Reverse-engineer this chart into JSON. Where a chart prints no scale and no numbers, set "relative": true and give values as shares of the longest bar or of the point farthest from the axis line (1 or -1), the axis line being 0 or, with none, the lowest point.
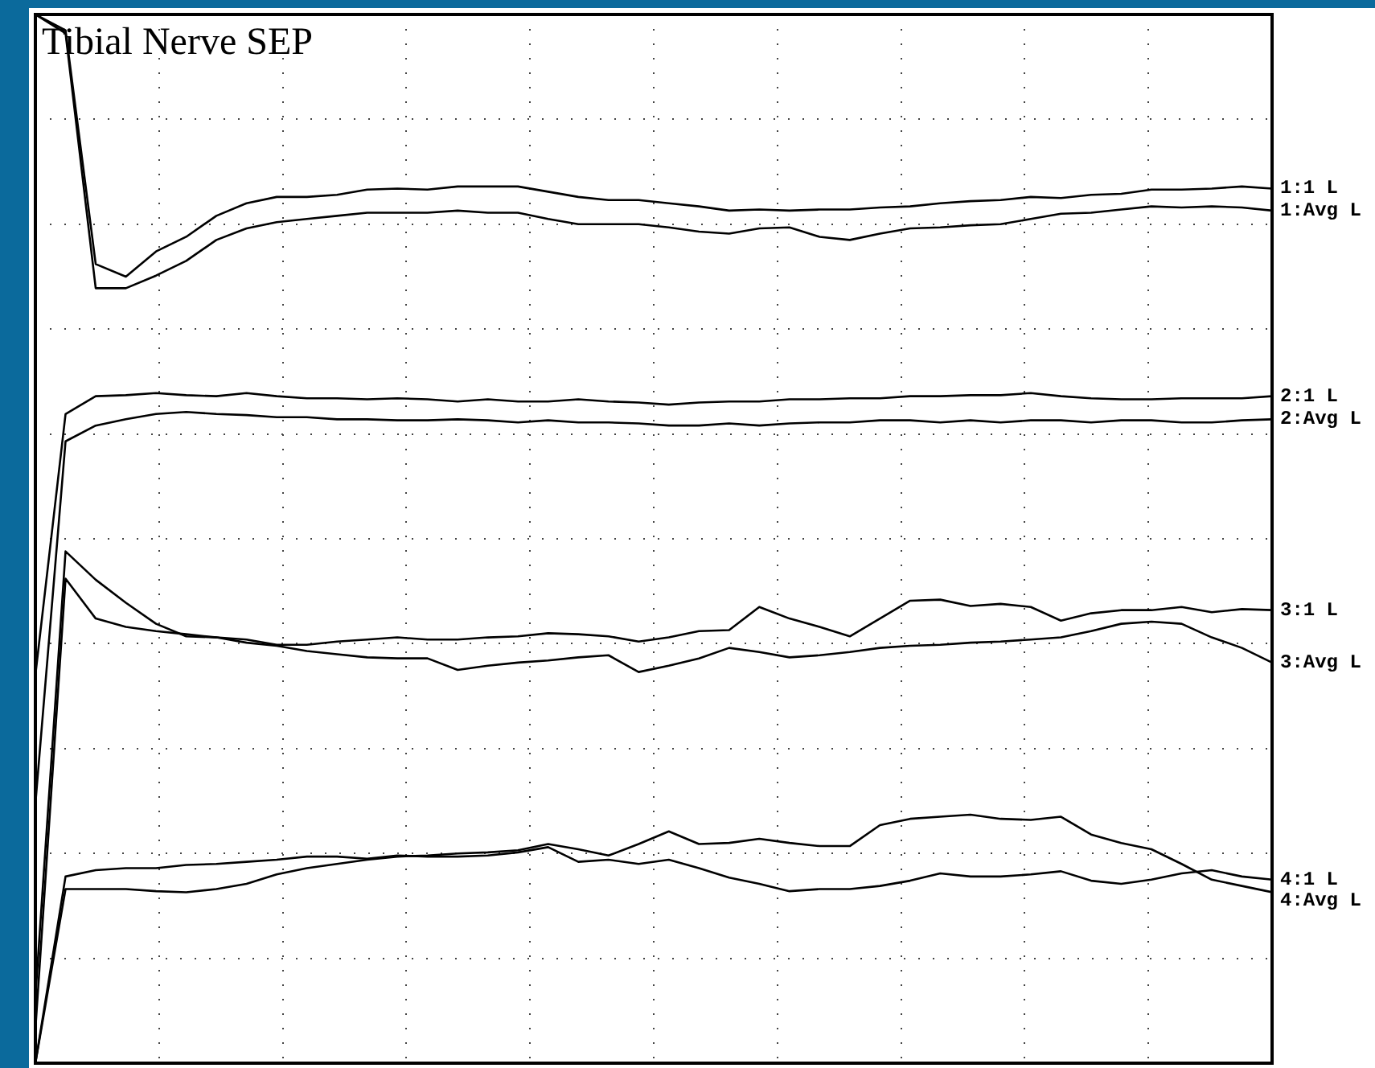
{
  "chart_data": {
    "type": "line",
    "title": "Tibial Nerve SEP",
    "relative": true,
    "grid": true,
    "legend": false,
    "tick_labels": false,
    "marker": "none",
    "line_style": "solid",
    "categories": [
      null,
      null,
      null,
      null,
      null,
      null,
      null,
      null,
      null,
      null,
      null,
      null,
      null,
      null,
      null,
      null,
      null,
      null,
      null,
      null,
      null,
      null,
      null,
      null,
      null,
      null,
      null,
      null,
      null,
      null,
      null,
      null,
      null,
      null,
      null,
      null,
      null,
      null,
      null,
      null,
      null,
      null
    ],
    "series": [
      {
        "name": "1:1 L",
        "color": "#000000",
        "values": [
          1.0,
          0.985,
          0.762,
          0.75,
          0.774,
          0.788,
          0.808,
          0.82,
          0.826,
          0.826,
          0.828,
          0.833,
          0.834,
          0.833,
          0.836,
          0.836,
          0.836,
          0.831,
          0.826,
          0.823,
          0.823,
          0.82,
          0.817,
          0.813,
          0.814,
          0.813,
          0.814,
          0.814,
          0.816,
          0.817,
          0.82,
          0.822,
          0.823,
          0.826,
          0.825,
          0.828,
          0.829,
          0.833,
          0.833,
          0.834,
          0.836,
          0.834
        ]
      },
      {
        "name": "1:Avg L",
        "color": "#000000",
        "values": [
          1.0,
          0.982,
          0.739,
          0.739,
          0.751,
          0.765,
          0.785,
          0.796,
          0.802,
          0.805,
          0.808,
          0.811,
          0.811,
          0.811,
          0.813,
          0.811,
          0.811,
          0.805,
          0.8,
          0.8,
          0.8,
          0.797,
          0.793,
          0.791,
          0.796,
          0.797,
          0.788,
          0.785,
          0.791,
          0.796,
          0.797,
          0.799,
          0.8,
          0.805,
          0.81,
          0.811,
          0.814,
          0.817,
          0.816,
          0.817,
          0.816,
          0.813
        ]
      },
      {
        "name": "2:1 L",
        "color": "#000000",
        "values": [
          0.37,
          0.619,
          0.636,
          0.637,
          0.639,
          0.637,
          0.636,
          0.639,
          0.636,
          0.634,
          0.634,
          0.633,
          0.634,
          0.633,
          0.631,
          0.633,
          0.631,
          0.631,
          0.633,
          0.631,
          0.63,
          0.628,
          0.63,
          0.631,
          0.631,
          0.633,
          0.633,
          0.634,
          0.634,
          0.636,
          0.636,
          0.637,
          0.637,
          0.639,
          0.636,
          0.634,
          0.633,
          0.633,
          0.634,
          0.634,
          0.634,
          0.636
        ]
      },
      {
        "name": "2:Avg L",
        "color": "#000000",
        "values": [
          0.247,
          0.593,
          0.608,
          0.614,
          0.619,
          0.621,
          0.619,
          0.618,
          0.616,
          0.616,
          0.614,
          0.614,
          0.613,
          0.613,
          0.614,
          0.613,
          0.611,
          0.613,
          0.611,
          0.611,
          0.61,
          0.608,
          0.608,
          0.61,
          0.608,
          0.61,
          0.611,
          0.611,
          0.613,
          0.613,
          0.611,
          0.613,
          0.611,
          0.613,
          0.613,
          0.611,
          0.613,
          0.613,
          0.611,
          0.611,
          0.613,
          0.614
        ]
      },
      {
        "name": "3:1 L",
        "color": "#000000",
        "values": [
          0.063,
          0.488,
          0.461,
          0.439,
          0.419,
          0.407,
          0.406,
          0.404,
          0.399,
          0.399,
          0.402,
          0.404,
          0.406,
          0.404,
          0.404,
          0.406,
          0.407,
          0.41,
          0.409,
          0.407,
          0.402,
          0.406,
          0.412,
          0.413,
          0.435,
          0.424,
          0.416,
          0.407,
          0.424,
          0.441,
          0.442,
          0.436,
          0.438,
          0.435,
          0.422,
          0.429,
          0.432,
          0.432,
          0.435,
          0.43,
          0.433,
          0.432
        ]
      },
      {
        "name": "3:Avg L",
        "color": "#000000",
        "values": [
          0.032,
          0.462,
          0.424,
          0.416,
          0.412,
          0.409,
          0.406,
          0.401,
          0.398,
          0.393,
          0.39,
          0.387,
          0.386,
          0.386,
          0.375,
          0.379,
          0.382,
          0.384,
          0.387,
          0.389,
          0.373,
          0.379,
          0.386,
          0.396,
          0.392,
          0.387,
          0.389,
          0.392,
          0.396,
          0.398,
          0.399,
          0.401,
          0.402,
          0.404,
          0.406,
          0.412,
          0.419,
          0.421,
          0.419,
          0.406,
          0.396,
          0.382
        ]
      },
      {
        "name": "4:1 L",
        "color": "#000000",
        "values": [
          0.0,
          0.178,
          0.184,
          0.186,
          0.186,
          0.189,
          0.19,
          0.192,
          0.194,
          0.197,
          0.197,
          0.195,
          0.198,
          0.197,
          0.197,
          0.198,
          0.201,
          0.206,
          0.192,
          0.194,
          0.19,
          0.194,
          0.186,
          0.177,
          0.171,
          0.164,
          0.166,
          0.166,
          0.169,
          0.174,
          0.181,
          0.178,
          0.178,
          0.18,
          0.183,
          0.174,
          0.171,
          0.175,
          0.181,
          0.184,
          0.178,
          0.175
        ]
      },
      {
        "name": "4:Avg L",
        "color": "#000000",
        "values": [
          0.0,
          0.166,
          0.166,
          0.166,
          0.164,
          0.163,
          0.166,
          0.171,
          0.18,
          0.186,
          0.19,
          0.194,
          0.197,
          0.198,
          0.2,
          0.201,
          0.203,
          0.209,
          0.204,
          0.198,
          0.209,
          0.221,
          0.209,
          0.21,
          0.214,
          0.21,
          0.207,
          0.207,
          0.227,
          0.233,
          0.235,
          0.237,
          0.233,
          0.232,
          0.235,
          0.218,
          0.21,
          0.204,
          0.19,
          0.175,
          0.169,
          0.163
        ]
      }
    ]
  }
}
